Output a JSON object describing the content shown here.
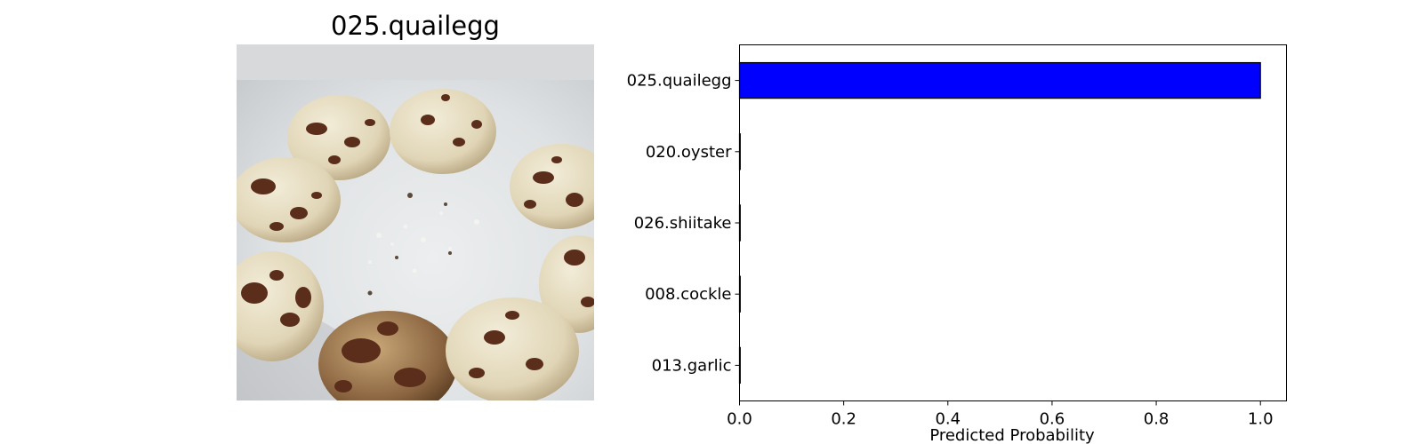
{
  "image_panel": {
    "title": "025.quailegg"
  },
  "chart_data": {
    "type": "bar",
    "orientation": "horizontal",
    "categories": [
      "025.quailegg",
      "020.oyster",
      "026.shiitake",
      "008.cockle",
      "013.garlic"
    ],
    "values": [
      1.0,
      0.0,
      0.0,
      0.0,
      0.0
    ],
    "title": "",
    "xlabel": "Predicted Probability",
    "ylabel": "",
    "xlim": [
      0,
      1.05
    ],
    "xticks": [
      0.0,
      0.2,
      0.4,
      0.6,
      0.8,
      1.0
    ],
    "xtick_labels": [
      "0.0",
      "0.2",
      "0.4",
      "0.6",
      "0.8",
      "1.0"
    ],
    "bar_color": "#0000ff",
    "bar_edge_color": "#000000",
    "grid": false,
    "legend": "none"
  }
}
